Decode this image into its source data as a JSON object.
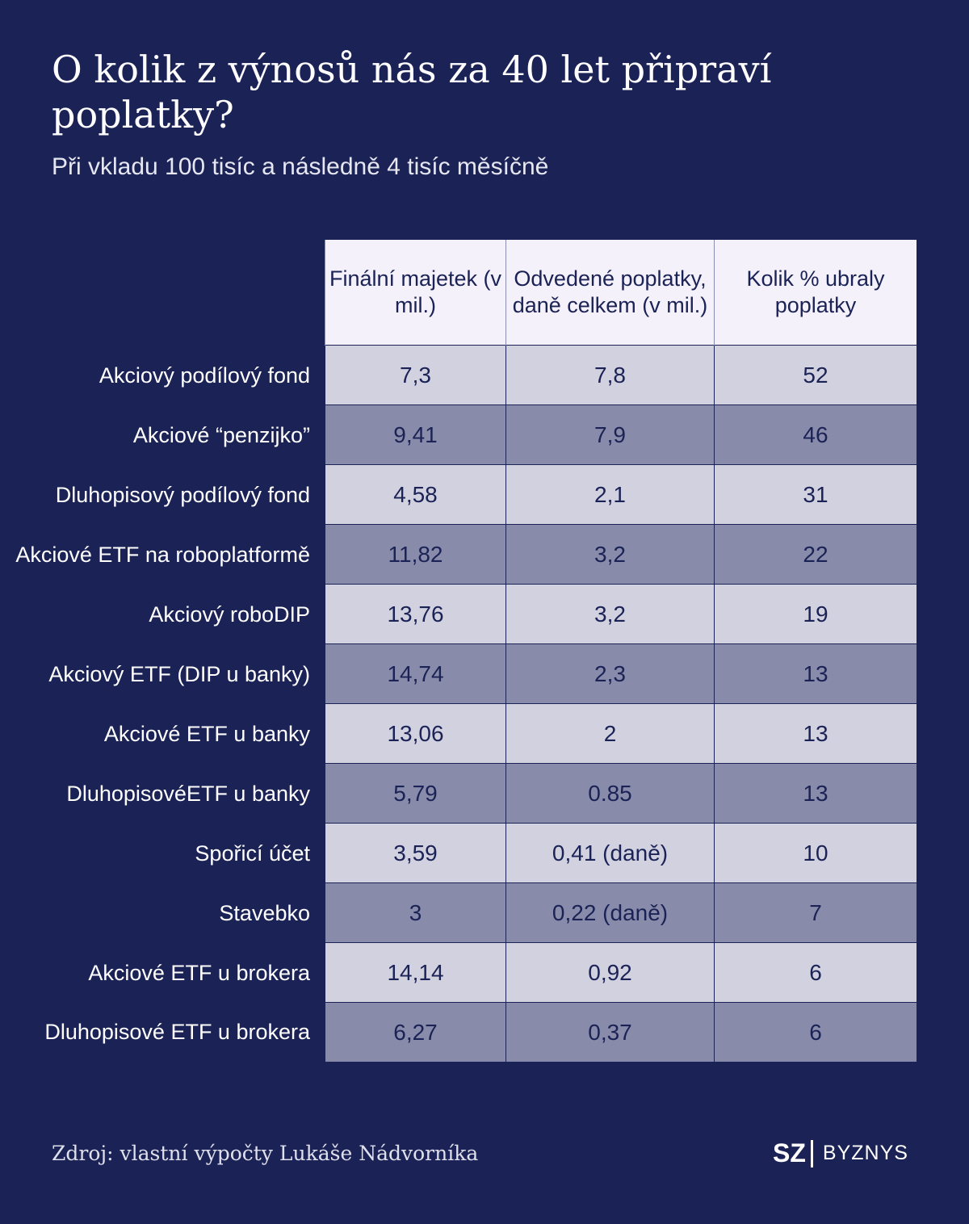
{
  "title": "O kolik z výnosů nás za 40 let připraví poplatky?",
  "subtitle": "Při vkladu 100 tisíc a následně 4 tisíc měsíčně",
  "source": "Zdroj: vlastní výpočty Lukáše Nádvorníka",
  "logo": {
    "sz": "SZ",
    "section": "BYZNYS"
  },
  "colors": {
    "background": "#1b2255",
    "header": "#f4f1fa",
    "row_light": "#d1d1e0",
    "row_dark": "#888caa"
  },
  "chart_data": {
    "type": "table",
    "title": "O kolik z výnosů nás za 40 let připraví poplatky?",
    "subtitle": "Při vkladu 100 tisíc a následně 4 tisíc měsíčně",
    "columns": [
      "Finální majetek (v mil.)",
      "Odvedené poplatky, daně celkem (v mil.)",
      "Kolik % ubraly poplatky"
    ],
    "rows": [
      {
        "label": "Akciový podílový fond",
        "values": [
          "7,3",
          "7,8",
          "52"
        ]
      },
      {
        "label": "Akciové “penzijko”",
        "values": [
          "9,41",
          "7,9",
          "46"
        ]
      },
      {
        "label": "Dluhopisový podílový fond",
        "values": [
          "4,58",
          "2,1",
          "31"
        ]
      },
      {
        "label": "Akciové ETF na roboplatformě",
        "values": [
          "11,82",
          "3,2",
          "22"
        ]
      },
      {
        "label": "Akciový roboDIP",
        "values": [
          "13,76",
          "3,2",
          "19"
        ]
      },
      {
        "label": "Akciový ETF (DIP u banky)",
        "values": [
          "14,74",
          "2,3",
          "13"
        ]
      },
      {
        "label": "Akciové ETF u banky",
        "values": [
          "13,06",
          "2",
          "13"
        ]
      },
      {
        "label": "DluhopisovéETF u banky",
        "values": [
          "5,79",
          "0.85",
          "13"
        ]
      },
      {
        "label": "Spořicí účet",
        "values": [
          "3,59",
          "0,41 (daně)",
          "10"
        ]
      },
      {
        "label": "Stavebko",
        "values": [
          "3",
          "0,22 (daně)",
          "7"
        ]
      },
      {
        "label": "Akciové ETF u brokera",
        "values": [
          "14,14",
          "0,92",
          "6"
        ]
      },
      {
        "label": "Dluhopisové ETF u brokera",
        "values": [
          "6,27",
          "0,37",
          "6"
        ]
      }
    ]
  }
}
